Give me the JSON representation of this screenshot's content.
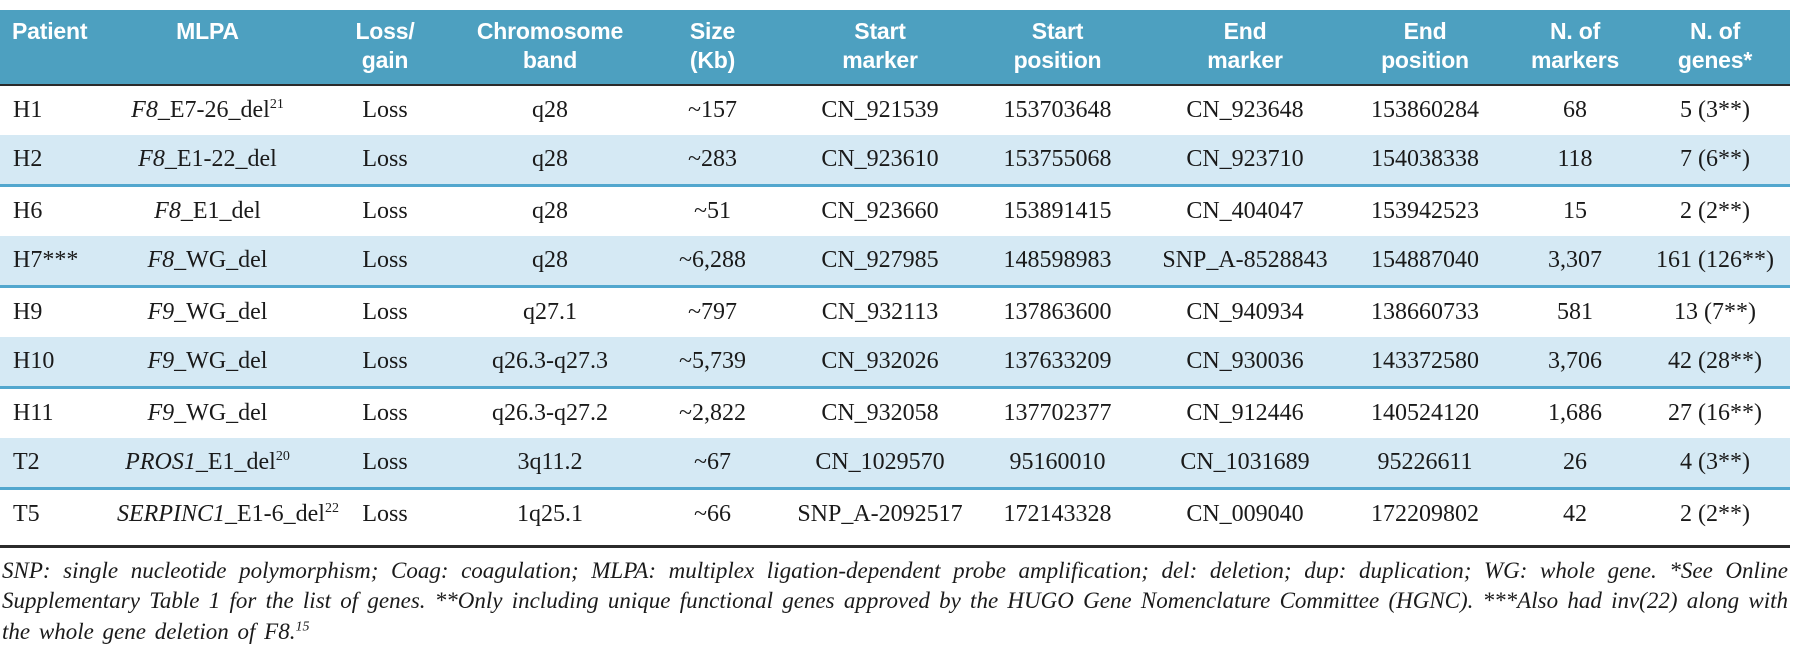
{
  "colors": {
    "header_bg": "#4da0c0",
    "stripe_bg": "#d5e9f4",
    "stripe_border": "#52a7ce",
    "rule": "#2b2b2b",
    "text": "#1a1a1a"
  },
  "table": {
    "columns": [
      {
        "key": "patient",
        "label": "Patient",
        "align": "left"
      },
      {
        "key": "mlpa",
        "label": "MLPA",
        "align": "center"
      },
      {
        "key": "loss_gain",
        "label": "Loss/\ngain",
        "align": "center"
      },
      {
        "key": "band",
        "label": "Chromosome\nband",
        "align": "center"
      },
      {
        "key": "size",
        "label": "Size\n(Kb)",
        "align": "center"
      },
      {
        "key": "start_marker",
        "label": "Start\nmarker",
        "align": "center"
      },
      {
        "key": "start_position",
        "label": "Start\nposition",
        "align": "center"
      },
      {
        "key": "end_marker",
        "label": "End\nmarker",
        "align": "center"
      },
      {
        "key": "end_position",
        "label": "End\nposition",
        "align": "center"
      },
      {
        "key": "n_markers",
        "label": "N. of\nmarkers",
        "align": "center"
      },
      {
        "key": "n_genes",
        "label": "N. of\ngenes*",
        "align": "center"
      }
    ],
    "rows": [
      {
        "patient": "H1",
        "mlpa_gene": "F8",
        "mlpa_rest": "_E7-26_del",
        "mlpa_sup": "21",
        "loss_gain": "Loss",
        "band": "q28",
        "size": "~157",
        "start_marker": "CN_921539",
        "start_position": "153703648",
        "end_marker": "CN_923648",
        "end_position": "153860284",
        "n_markers": "68",
        "n_genes": "5 (3**)",
        "striped": false
      },
      {
        "patient": "H2",
        "mlpa_gene": "F8",
        "mlpa_rest": "_E1-22_del",
        "mlpa_sup": "",
        "loss_gain": "Loss",
        "band": "q28",
        "size": "~283",
        "start_marker": "CN_923610",
        "start_position": "153755068",
        "end_marker": "CN_923710",
        "end_position": "154038338",
        "n_markers": "118",
        "n_genes": "7 (6**)",
        "striped": true
      },
      {
        "patient": "H6",
        "mlpa_gene": "F8",
        "mlpa_rest": "_E1_del",
        "mlpa_sup": "",
        "loss_gain": "Loss",
        "band": "q28",
        "size": "~51",
        "start_marker": "CN_923660",
        "start_position": "153891415",
        "end_marker": "CN_404047",
        "end_position": "153942523",
        "n_markers": "15",
        "n_genes": "2 (2**)",
        "striped": false
      },
      {
        "patient": "H7***",
        "mlpa_gene": "F8",
        "mlpa_rest": "_WG_del",
        "mlpa_sup": "",
        "loss_gain": "Loss",
        "band": "q28",
        "size": "~6,288",
        "start_marker": "CN_927985",
        "start_position": "148598983",
        "end_marker": "SNP_A-8528843",
        "end_position": "154887040",
        "n_markers": "3,307",
        "n_genes": "161 (126**)",
        "striped": true
      },
      {
        "patient": "H9",
        "mlpa_gene": "F9",
        "mlpa_rest": "_WG_del",
        "mlpa_sup": "",
        "loss_gain": "Loss",
        "band": "q27.1",
        "size": "~797",
        "start_marker": "CN_932113",
        "start_position": "137863600",
        "end_marker": "CN_940934",
        "end_position": "138660733",
        "n_markers": "581",
        "n_genes": "13 (7**)",
        "striped": false
      },
      {
        "patient": "H10",
        "mlpa_gene": "F9",
        "mlpa_rest": "_WG_del",
        "mlpa_sup": "",
        "loss_gain": "Loss",
        "band": "q26.3-q27.3",
        "size": "~5,739",
        "start_marker": "CN_932026",
        "start_position": "137633209",
        "end_marker": "CN_930036",
        "end_position": "143372580",
        "n_markers": "3,706",
        "n_genes": "42 (28**)",
        "striped": true
      },
      {
        "patient": "H11",
        "mlpa_gene": "F9",
        "mlpa_rest": "_WG_del",
        "mlpa_sup": "",
        "loss_gain": "Loss",
        "band": "q26.3-q27.2",
        "size": "~2,822",
        "start_marker": "CN_932058",
        "start_position": "137702377",
        "end_marker": "CN_912446",
        "end_position": "140524120",
        "n_markers": "1,686",
        "n_genes": "27 (16**)",
        "striped": false
      },
      {
        "patient": "T2",
        "mlpa_gene": "PROS1",
        "mlpa_rest": "_E1_del",
        "mlpa_sup": "20",
        "loss_gain": "Loss",
        "band": "3q11.2",
        "size": "~67",
        "start_marker": "CN_1029570",
        "start_position": "95160010",
        "end_marker": "CN_1031689",
        "end_position": "95226611",
        "n_markers": "26",
        "n_genes": "4 (3**)",
        "striped": true
      },
      {
        "patient": "T5",
        "mlpa_gene": "SERPINC1",
        "mlpa_rest": "_E1-6_del",
        "mlpa_sup": "22",
        "loss_gain": "Loss",
        "band": "1q25.1",
        "size": "~66",
        "start_marker": "SNP_A-2092517",
        "start_position": "172143328",
        "end_marker": "CN_009040",
        "end_position": "172209802",
        "n_markers": "42",
        "n_genes": "2 (2**)",
        "striped": false
      }
    ]
  },
  "footnote": {
    "text": "SNP: single nucleotide polymorphism; Coag: coagulation; MLPA: multiplex ligation-dependent probe amplification; del: deletion; dup: duplication; WG: whole gene. *See Online Supplementary Table 1 for the list of genes. **Only including unique functional genes approved by the HUGO Gene Nomenclature Committee (HGNC). ***Also had inv(22) along with the whole gene deletion of F8.",
    "sup": "15"
  }
}
